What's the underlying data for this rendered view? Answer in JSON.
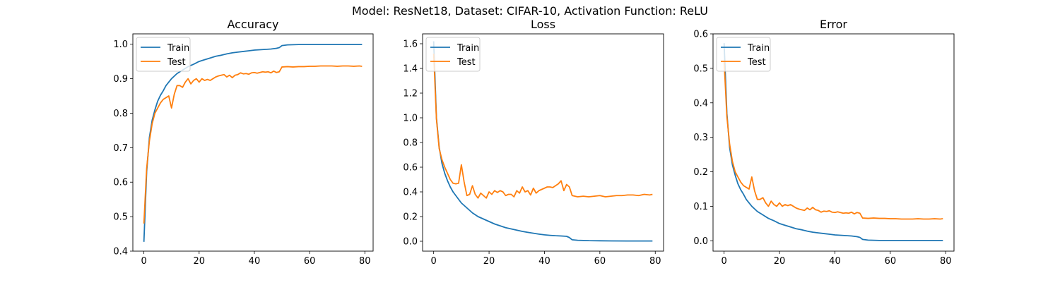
{
  "figure": {
    "suptitle": "Model: ResNet18, Dataset: CIFAR-10, Activation Function: ReLU"
  },
  "colors": {
    "train": "#1f77b4",
    "test": "#ff7f0e"
  },
  "chart_data": [
    {
      "type": "line",
      "title": "Accuracy",
      "xlabel": "",
      "ylabel": "",
      "xlim": [
        -4,
        83
      ],
      "ylim": [
        0.4,
        1.03
      ],
      "xticks": [
        0,
        20,
        40,
        60,
        80
      ],
      "yticks": [
        0.4,
        0.5,
        0.6,
        0.7,
        0.8,
        0.9,
        1.0
      ],
      "ytick_labels": [
        "0.4",
        "0.5",
        "0.6",
        "0.7",
        "0.8",
        "0.9",
        "1.0"
      ],
      "legend": "top-left",
      "series": [
        {
          "name": "Train",
          "color": "#1f77b4",
          "x": [
            0,
            1,
            2,
            3,
            4,
            5,
            6,
            7,
            8,
            9,
            10,
            12,
            14,
            16,
            18,
            20,
            22,
            24,
            26,
            28,
            30,
            32,
            34,
            36,
            38,
            40,
            42,
            44,
            46,
            48,
            49,
            50,
            52,
            56,
            60,
            64,
            70,
            75,
            79
          ],
          "y": [
            0.427,
            0.63,
            0.73,
            0.78,
            0.81,
            0.835,
            0.852,
            0.865,
            0.88,
            0.89,
            0.9,
            0.915,
            0.925,
            0.935,
            0.942,
            0.95,
            0.955,
            0.96,
            0.965,
            0.968,
            0.972,
            0.975,
            0.977,
            0.979,
            0.981,
            0.983,
            0.984,
            0.985,
            0.986,
            0.988,
            0.99,
            0.996,
            0.998,
            0.999,
            0.999,
            0.999,
            0.999,
            0.999,
            0.999
          ]
        },
        {
          "name": "Test",
          "color": "#ff7f0e",
          "x": [
            0,
            1,
            2,
            3,
            4,
            5,
            6,
            7,
            8,
            9,
            10,
            11,
            12,
            13,
            14,
            15,
            16,
            17,
            18,
            19,
            20,
            21,
            22,
            23,
            24,
            25,
            26,
            27,
            28,
            29,
            30,
            31,
            32,
            33,
            34,
            35,
            36,
            37,
            38,
            39,
            40,
            41,
            42,
            43,
            44,
            45,
            46,
            47,
            48,
            49,
            50,
            52,
            54,
            56,
            58,
            60,
            62,
            64,
            66,
            68,
            70,
            72,
            74,
            76,
            78,
            79
          ],
          "y": [
            0.48,
            0.64,
            0.72,
            0.77,
            0.8,
            0.815,
            0.83,
            0.84,
            0.845,
            0.85,
            0.815,
            0.855,
            0.88,
            0.88,
            0.875,
            0.89,
            0.9,
            0.885,
            0.895,
            0.9,
            0.89,
            0.9,
            0.895,
            0.898,
            0.895,
            0.9,
            0.905,
            0.908,
            0.91,
            0.912,
            0.905,
            0.91,
            0.903,
            0.91,
            0.912,
            0.917,
            0.914,
            0.915,
            0.913,
            0.917,
            0.918,
            0.916,
            0.918,
            0.92,
            0.919,
            0.92,
            0.917,
            0.922,
            0.918,
            0.92,
            0.934,
            0.935,
            0.934,
            0.935,
            0.935,
            0.936,
            0.936,
            0.937,
            0.937,
            0.937,
            0.936,
            0.937,
            0.937,
            0.936,
            0.937,
            0.936
          ]
        }
      ]
    },
    {
      "type": "line",
      "title": "Loss",
      "xlabel": "",
      "ylabel": "",
      "xlim": [
        -4,
        83
      ],
      "ylim": [
        -0.08,
        1.68
      ],
      "xticks": [
        0,
        20,
        40,
        60,
        80
      ],
      "yticks": [
        0.0,
        0.2,
        0.4,
        0.6,
        0.8,
        1.0,
        1.2,
        1.4,
        1.6
      ],
      "ytick_labels": [
        "0.0",
        "0.2",
        "0.4",
        "0.6",
        "0.8",
        "1.0",
        "1.2",
        "1.4",
        "1.6"
      ],
      "legend": "top-left",
      "series": [
        {
          "name": "Train",
          "color": "#1f77b4",
          "x": [
            0,
            1,
            2,
            3,
            4,
            5,
            6,
            7,
            8,
            9,
            10,
            12,
            14,
            16,
            18,
            20,
            22,
            24,
            26,
            28,
            30,
            32,
            34,
            36,
            38,
            40,
            42,
            44,
            46,
            48,
            49,
            50,
            52,
            56,
            60,
            64,
            70,
            75,
            79
          ],
          "y": [
            1.62,
            1.0,
            0.76,
            0.63,
            0.55,
            0.49,
            0.44,
            0.4,
            0.37,
            0.34,
            0.31,
            0.27,
            0.23,
            0.2,
            0.18,
            0.16,
            0.14,
            0.125,
            0.11,
            0.1,
            0.09,
            0.08,
            0.072,
            0.065,
            0.058,
            0.052,
            0.048,
            0.045,
            0.043,
            0.04,
            0.03,
            0.012,
            0.008,
            0.005,
            0.004,
            0.003,
            0.002,
            0.002,
            0.002
          ]
        },
        {
          "name": "Test",
          "color": "#ff7f0e",
          "x": [
            0,
            1,
            2,
            3,
            4,
            5,
            6,
            7,
            8,
            9,
            10,
            11,
            12,
            13,
            14,
            15,
            16,
            17,
            18,
            19,
            20,
            21,
            22,
            23,
            24,
            25,
            26,
            27,
            28,
            29,
            30,
            31,
            32,
            33,
            34,
            35,
            36,
            37,
            38,
            39,
            40,
            41,
            42,
            43,
            44,
            45,
            46,
            47,
            48,
            49,
            50,
            52,
            54,
            56,
            58,
            60,
            62,
            64,
            66,
            68,
            70,
            72,
            74,
            76,
            78,
            79
          ],
          "y": [
            1.52,
            0.99,
            0.75,
            0.66,
            0.6,
            0.55,
            0.5,
            0.47,
            0.465,
            0.47,
            0.62,
            0.48,
            0.37,
            0.38,
            0.45,
            0.38,
            0.35,
            0.39,
            0.37,
            0.35,
            0.4,
            0.38,
            0.41,
            0.395,
            0.41,
            0.4,
            0.37,
            0.38,
            0.38,
            0.36,
            0.41,
            0.39,
            0.44,
            0.4,
            0.41,
            0.375,
            0.43,
            0.39,
            0.41,
            0.42,
            0.43,
            0.44,
            0.44,
            0.435,
            0.45,
            0.465,
            0.49,
            0.41,
            0.46,
            0.44,
            0.37,
            0.36,
            0.365,
            0.36,
            0.365,
            0.37,
            0.36,
            0.365,
            0.37,
            0.37,
            0.375,
            0.375,
            0.37,
            0.38,
            0.375,
            0.38
          ]
        }
      ]
    },
    {
      "type": "line",
      "title": "Error",
      "xlabel": "",
      "ylabel": "",
      "xlim": [
        -4,
        83
      ],
      "ylim": [
        -0.03,
        0.6
      ],
      "xticks": [
        0,
        20,
        40,
        60,
        80
      ],
      "yticks": [
        0.0,
        0.1,
        0.2,
        0.3,
        0.4,
        0.5,
        0.6
      ],
      "ytick_labels": [
        "0.0",
        "0.1",
        "0.2",
        "0.3",
        "0.4",
        "0.5",
        "0.6"
      ],
      "legend": "top-left",
      "series": [
        {
          "name": "Train",
          "color": "#1f77b4",
          "x": [
            0,
            1,
            2,
            3,
            4,
            5,
            6,
            7,
            8,
            9,
            10,
            12,
            14,
            16,
            18,
            20,
            22,
            24,
            26,
            28,
            30,
            32,
            34,
            36,
            38,
            40,
            42,
            44,
            46,
            48,
            49,
            50,
            52,
            56,
            60,
            64,
            70,
            75,
            79
          ],
          "y": [
            0.573,
            0.37,
            0.27,
            0.22,
            0.19,
            0.165,
            0.148,
            0.135,
            0.12,
            0.11,
            0.1,
            0.085,
            0.075,
            0.065,
            0.058,
            0.05,
            0.045,
            0.04,
            0.035,
            0.032,
            0.028,
            0.025,
            0.023,
            0.021,
            0.019,
            0.017,
            0.016,
            0.015,
            0.014,
            0.012,
            0.01,
            0.004,
            0.002,
            0.001,
            0.001,
            0.001,
            0.001,
            0.001,
            0.001
          ]
        },
        {
          "name": "Test",
          "color": "#ff7f0e",
          "x": [
            0,
            1,
            2,
            3,
            4,
            5,
            6,
            7,
            8,
            9,
            10,
            11,
            12,
            13,
            14,
            15,
            16,
            17,
            18,
            19,
            20,
            21,
            22,
            23,
            24,
            25,
            26,
            27,
            28,
            29,
            30,
            31,
            32,
            33,
            34,
            35,
            36,
            37,
            38,
            39,
            40,
            41,
            42,
            43,
            44,
            45,
            46,
            47,
            48,
            49,
            50,
            52,
            54,
            56,
            58,
            60,
            62,
            64,
            66,
            68,
            70,
            72,
            74,
            76,
            78,
            79
          ],
          "y": [
            0.52,
            0.36,
            0.28,
            0.23,
            0.2,
            0.185,
            0.17,
            0.16,
            0.155,
            0.15,
            0.185,
            0.145,
            0.12,
            0.12,
            0.125,
            0.11,
            0.1,
            0.115,
            0.105,
            0.1,
            0.11,
            0.1,
            0.105,
            0.102,
            0.105,
            0.1,
            0.095,
            0.092,
            0.09,
            0.088,
            0.095,
            0.09,
            0.097,
            0.09,
            0.088,
            0.083,
            0.086,
            0.085,
            0.087,
            0.083,
            0.082,
            0.084,
            0.082,
            0.08,
            0.081,
            0.08,
            0.083,
            0.078,
            0.082,
            0.08,
            0.066,
            0.065,
            0.066,
            0.065,
            0.065,
            0.064,
            0.064,
            0.063,
            0.063,
            0.063,
            0.064,
            0.063,
            0.063,
            0.064,
            0.063,
            0.064
          ]
        }
      ]
    }
  ]
}
